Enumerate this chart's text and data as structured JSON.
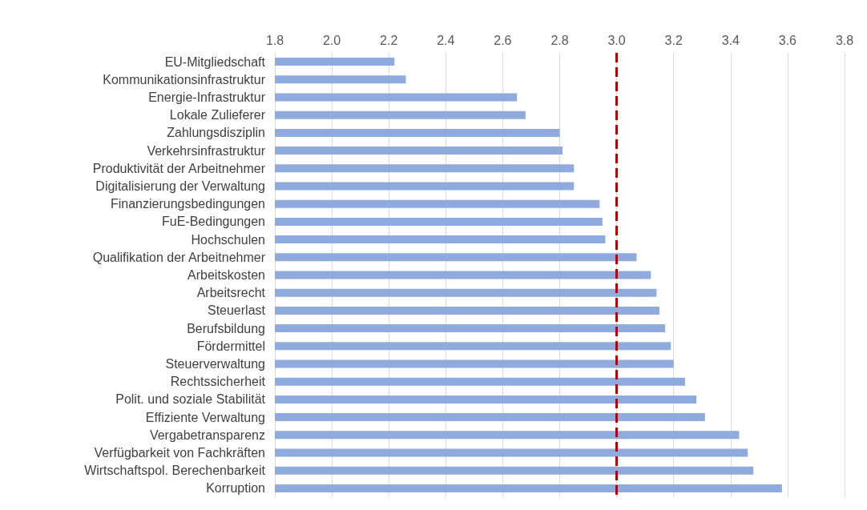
{
  "chart_data": {
    "type": "bar",
    "orientation": "horizontal",
    "color": "#8faadc",
    "categories": [
      "EU-Mitgliedschaft",
      "Kommunikationsinfrastruktur",
      "Energie-Infrastruktur",
      "Lokale Zulieferer",
      "Zahlungsdisziplin",
      "Verkehrsinfrastruktur",
      "Produktivität der Arbeitnehmer",
      "Digitalisierung der Verwaltung",
      "Finanzierungsbedingungen",
      "FuE-Bedingungen",
      "Hochschulen",
      "Qualifikation der Arbeitnehmer",
      "Arbeitskosten",
      "Arbeitsrecht",
      "Steuerlast",
      "Berufsbildung",
      "Fördermittel",
      "Steuerverwaltung",
      "Rechtssicherheit",
      "Polit. und soziale Stabilität",
      "Effiziente Verwaltung",
      "Vergabetransparenz",
      "Verfügbarkeit von Fachkräften",
      "Wirtschaftspol. Berechenbarkeit",
      "Korruption"
    ],
    "values": [
      2.22,
      2.26,
      2.65,
      2.68,
      2.8,
      2.81,
      2.85,
      2.85,
      2.94,
      2.95,
      2.96,
      3.07,
      3.12,
      3.14,
      3.15,
      3.17,
      3.19,
      3.2,
      3.24,
      3.28,
      3.31,
      3.43,
      3.46,
      3.48,
      3.58
    ],
    "xlim": [
      1.8,
      3.8
    ],
    "xticks": [
      1.8,
      {
        "value": 2,
        "label": "2.0"
      },
      2.2,
      2.4,
      2.6,
      2.8,
      {
        "value": 3,
        "label": "3.0"
      },
      3.2,
      3.4,
      3.6,
      3.8
    ],
    "grid": "x",
    "ref_lines": [
      {
        "axis": "x",
        "value": 3.0,
        "color": "#c00000",
        "line_style": "dashed"
      }
    ]
  }
}
